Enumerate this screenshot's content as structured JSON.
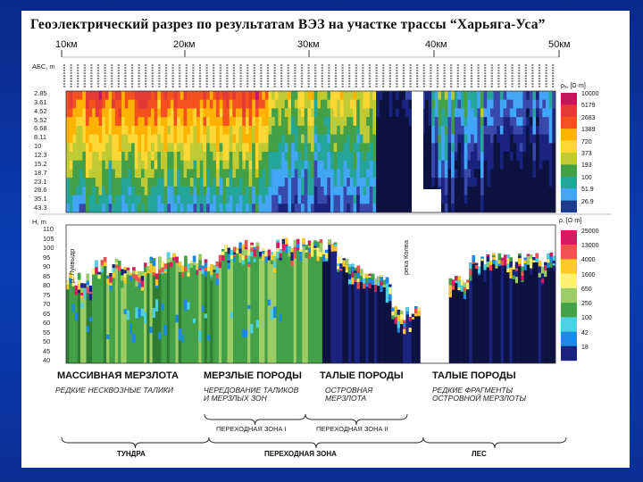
{
  "title": "Геоэлектрический разрез по результатам ВЭЗ на участке трассы “Харьяга-Уса”",
  "km_marks": [
    "10км",
    "20км",
    "30км",
    "40км",
    "50км"
  ],
  "top_panel": {
    "axis_label": "АБС, m",
    "depths": [
      "2.85",
      "3.61",
      "4.52",
      "5.52",
      "6.68",
      "8.11",
      "10",
      "12.3",
      "15.2",
      "18.7",
      "23.1",
      "28.6",
      "35.1",
      "43.3"
    ],
    "legend_title": "ρₐ, [Ω·m]",
    "legend_values": [
      "10000",
      "5179",
      "2683",
      "1389",
      "720",
      "373",
      "193",
      "100",
      "51.9",
      "26.9"
    ],
    "legend_colors": [
      "#c2185b",
      "#e53935",
      "#f4511e",
      "#ffb300",
      "#fdd835",
      "#c0ca33",
      "#43a047",
      "#26a69a",
      "#42a5f5",
      "#1e3a8a"
    ]
  },
  "bottom_panel": {
    "axis_label": "H, m",
    "heights": [
      "110",
      "105",
      "100",
      "95",
      "90",
      "85",
      "80",
      "75",
      "70",
      "65",
      "60",
      "55",
      "50",
      "45",
      "40"
    ],
    "legend_title": "ρ, [Ω·m]",
    "legend_values": [
      "25000",
      "13000",
      "4000",
      "1600",
      "650",
      "250",
      "100",
      "42",
      "18"
    ],
    "legend_colors": [
      "#d81b60",
      "#ef5350",
      "#ffca28",
      "#fff176",
      "#9ccc65",
      "#43a047",
      "#4dd0e1",
      "#1e88e5",
      "#1a237e"
    ],
    "river_labels": [
      "р. Луквыдр",
      "река Колва"
    ]
  },
  "zones": [
    {
      "title": "МАССИВНАЯ МЕРЗЛОТА",
      "subtitle": "РЕДКИЕ НЕСКВОЗНЫЕ ТАЛИКИ"
    },
    {
      "title": "МЕРЗЛЫЕ ПОРОДЫ",
      "subtitle": "ЧЕРЕДОВАНИЕ ТАЛИКОВ\nИ МЕРЗЛЫХ ЗОН"
    },
    {
      "title": "ТАЛЫЕ ПОРОДЫ",
      "subtitle": "ОСТРОВНАЯ\nМЕРЗЛОТА"
    },
    {
      "title": "ТАЛЫЕ ПОРОДЫ",
      "subtitle": "РЕДКИЕ ФРАГМЕНТЫ\nОСТРОВНОЙ МЕРЗЛОТЫ"
    }
  ],
  "transition_labels": [
    "ПЕРЕХОДНАЯ ЗОНА I",
    "ПЕРЕХОДНАЯ ЗОНА II"
  ],
  "bottom_labels": [
    "ТУНДРА",
    "ПЕРЕХОДНАЯ ЗОНА",
    "ЛЕС"
  ]
}
